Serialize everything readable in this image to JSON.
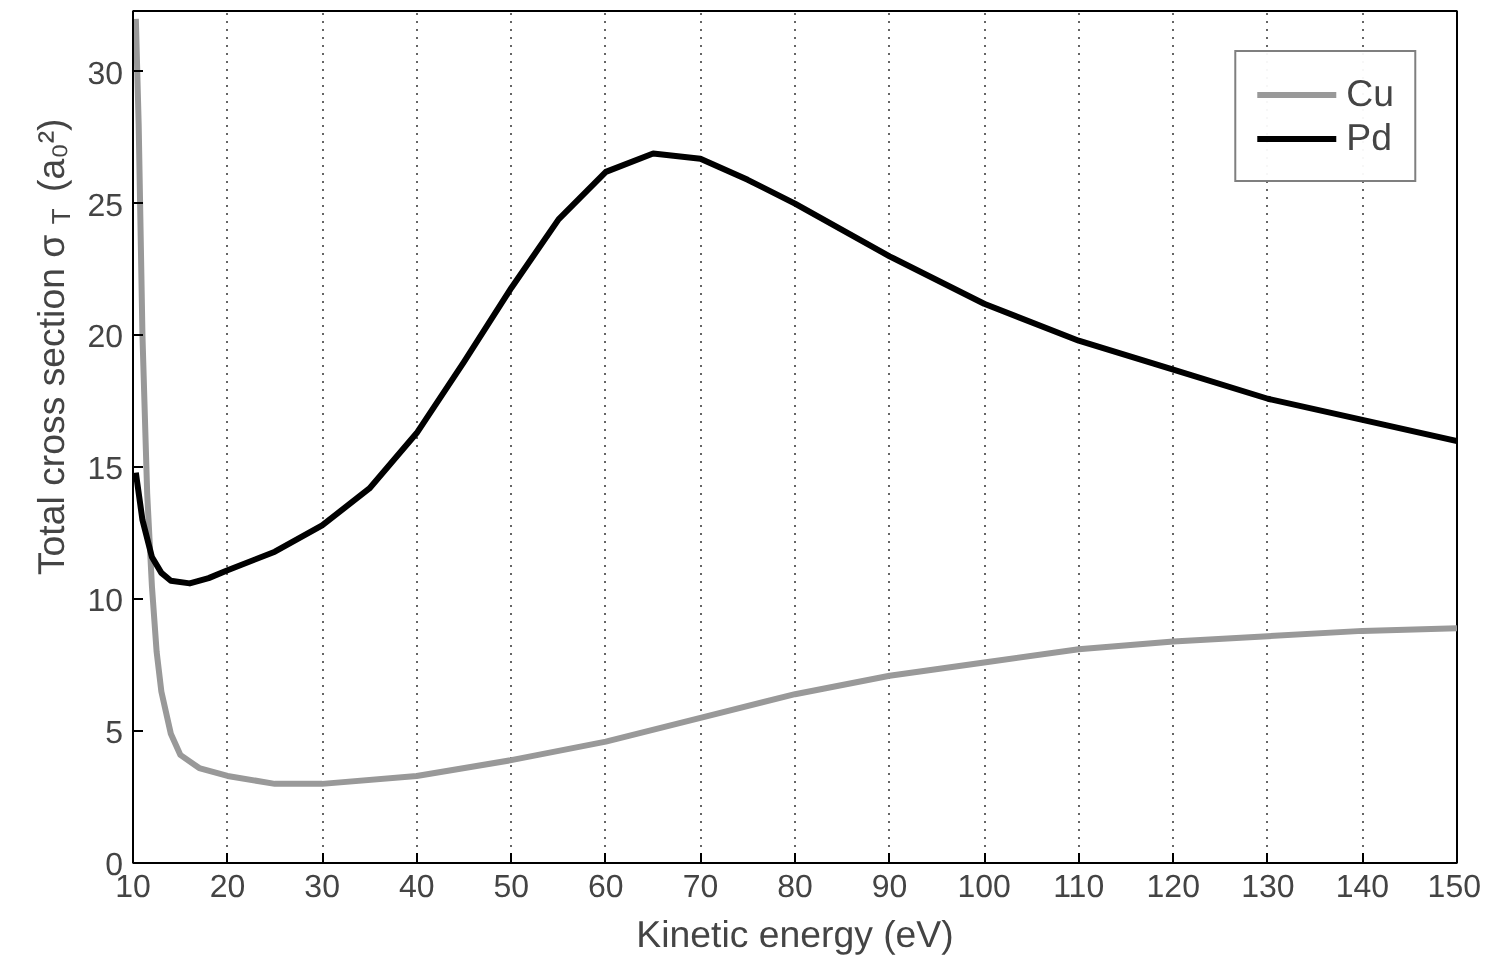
{
  "chart_data": {
    "type": "line",
    "xlabel": "Kinetic energy (eV)",
    "ylabel": "Total cross section σ$_{T}$ (a₀²)",
    "xlim": [
      10,
      150
    ],
    "ylim": [
      0,
      32.3
    ],
    "xticks": [
      10,
      20,
      30,
      40,
      50,
      60,
      70,
      80,
      90,
      100,
      110,
      120,
      130,
      140,
      150
    ],
    "yticks": [
      0,
      5,
      10,
      15,
      20,
      25,
      30
    ],
    "grid": "x",
    "legend": "top right",
    "line_style": "solid",
    "marker": "none",
    "series": [
      {
        "name": "Cu",
        "color": "#999999",
        "x": [
          10.3,
          10.6,
          11,
          11.5,
          12,
          12.5,
          13,
          14,
          15,
          17,
          20,
          25,
          30,
          40,
          50,
          60,
          70,
          80,
          90,
          100,
          110,
          120,
          130,
          140,
          150
        ],
        "values": [
          32,
          28,
          20,
          14,
          10.5,
          8,
          6.5,
          4.9,
          4.1,
          3.6,
          3.3,
          3.0,
          3.0,
          3.3,
          3.9,
          4.6,
          5.5,
          6.4,
          7.1,
          7.6,
          8.1,
          8.4,
          8.6,
          8.8,
          8.9
        ]
      },
      {
        "name": "Pd",
        "color": "#000000",
        "x": [
          10.3,
          11,
          12,
          13,
          14,
          16,
          18,
          20,
          25,
          30,
          35,
          40,
          45,
          50,
          55,
          60,
          65,
          70,
          75,
          80,
          90,
          100,
          110,
          120,
          130,
          140,
          150
        ],
        "values": [
          14.8,
          13,
          11.6,
          11.0,
          10.7,
          10.6,
          10.8,
          11.1,
          11.8,
          12.8,
          14.2,
          16.3,
          19.0,
          21.8,
          24.4,
          26.2,
          26.9,
          26.7,
          25.9,
          25.0,
          23.0,
          21.2,
          19.8,
          18.7,
          17.6,
          16.8,
          16.0
        ]
      }
    ]
  }
}
